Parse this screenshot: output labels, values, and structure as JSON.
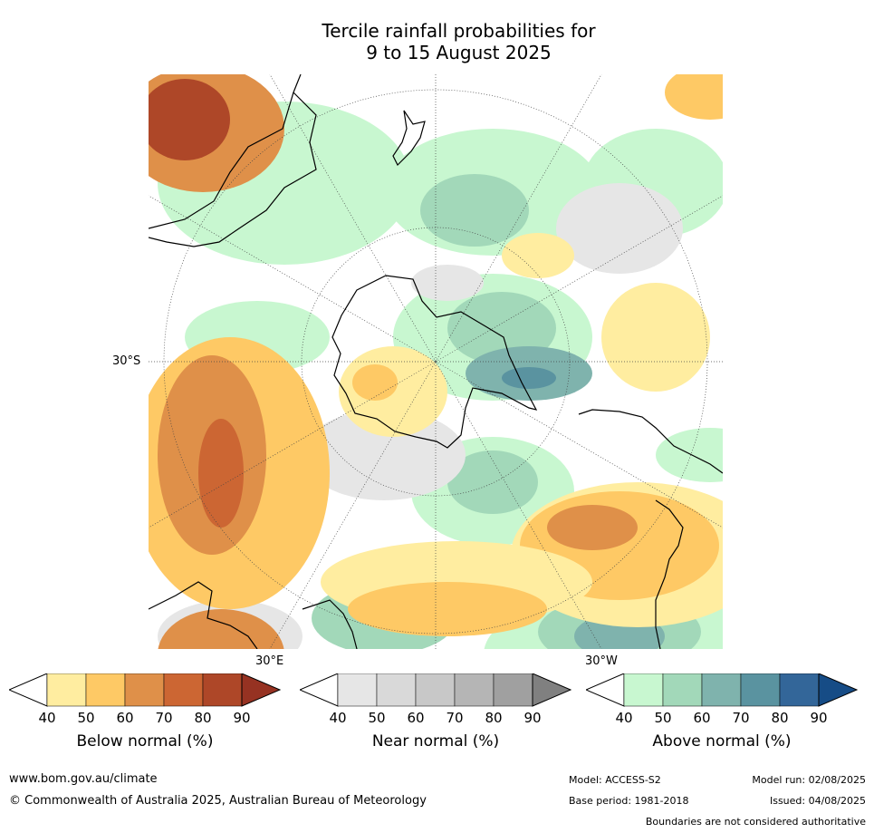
{
  "title": {
    "line1": "Tercile rainfall probabilities for",
    "line2": "9 to 15 August 2025"
  },
  "map": {
    "projection": "south-polar-stereographic",
    "lat_label": "30°S",
    "lon_label_east": "30°E",
    "lon_label_west": "30°W"
  },
  "colorbars": [
    {
      "id": "below",
      "title": "Below normal (%)",
      "ticks": [
        "40",
        "50",
        "60",
        "70",
        "80",
        "90"
      ],
      "colors": [
        "#ffffff",
        "#ffeda0",
        "#fec965",
        "#df9049",
        "#cc6633",
        "#ae4728",
        "#963222"
      ]
    },
    {
      "id": "near",
      "title": "Near normal (%)",
      "ticks": [
        "40",
        "50",
        "60",
        "70",
        "80",
        "90"
      ],
      "colors": [
        "#ffffff",
        "#e6e6e6",
        "#d9d9d9",
        "#c8c8c8",
        "#b5b5b5",
        "#a0a0a0",
        "#808080"
      ]
    },
    {
      "id": "above",
      "title": "Above normal (%)",
      "ticks": [
        "40",
        "50",
        "60",
        "70",
        "80",
        "90"
      ],
      "colors": [
        "#ffffff",
        "#c8f7d0",
        "#a2d8b9",
        "#7fb3ad",
        "#5a93a0",
        "#336699",
        "#164c86"
      ]
    }
  ],
  "footer": {
    "website": "www.bom.gov.au/climate",
    "copyright": "© Commonwealth of Australia 2025, Australian Bureau of Meteorology",
    "model": "Model: ACCESS-S2",
    "base_period": "Base period: 1981-2018",
    "model_run": "Model run: 02/08/2025",
    "issued": "Issued: 04/08/2025",
    "disclaimer": "Boundaries are not considered authoritative"
  }
}
